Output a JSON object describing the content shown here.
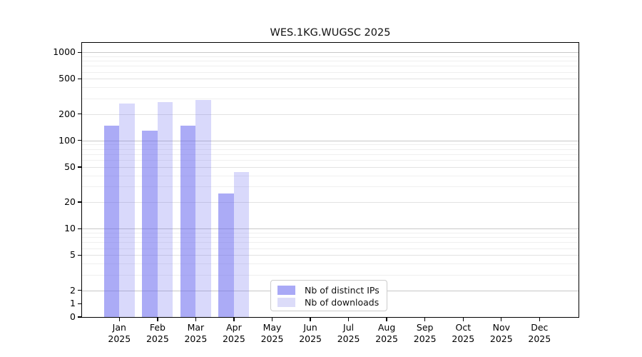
{
  "chart_data": {
    "type": "bar",
    "title": "WES.1KG.WUGSC 2025",
    "x_axis": {
      "categories": [
        "Jan",
        "Feb",
        "Mar",
        "Apr",
        "May",
        "Jun",
        "Jul",
        "Aug",
        "Sep",
        "Oct",
        "Nov",
        "Dec"
      ],
      "year_label": "2025"
    },
    "y_axis": {
      "scale": "symlog",
      "ylim": [
        0,
        1280
      ],
      "ticks": [
        1000,
        500,
        200,
        100,
        50,
        20,
        10,
        5,
        2,
        1,
        0
      ],
      "gridline_ticks": [
        1000,
        500,
        200,
        100,
        50,
        20,
        10,
        5,
        2
      ],
      "emphasized_gridlines": [
        1000,
        100,
        10,
        2
      ],
      "minor_gridlines": [
        900,
        800,
        700,
        600,
        400,
        300,
        90,
        80,
        70,
        60,
        40,
        30,
        9,
        8,
        7,
        6,
        4,
        3
      ]
    },
    "series": [
      {
        "key": "distinct_ips",
        "name": "Nb of distinct IPs",
        "bar_color": "rgba(102,102,238,0.55)",
        "legend_color": "#a9a9f6",
        "values": [
          148,
          130,
          148,
          25,
          0,
          0,
          0,
          0,
          0,
          0,
          0,
          0
        ]
      },
      {
        "key": "downloads",
        "name": "Nb of downloads",
        "bar_color": "rgba(102,102,238,0.25)",
        "legend_color": "#dcdcf9",
        "values": [
          262,
          272,
          286,
          44,
          0,
          0,
          0,
          0,
          0,
          0,
          0,
          0
        ]
      }
    ],
    "legend": {
      "position": "bottom-center",
      "border_color": "#cccccc"
    },
    "grid": true,
    "background": "#ffffff"
  }
}
